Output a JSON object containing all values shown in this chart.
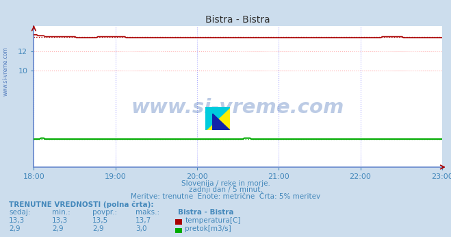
{
  "title": "Bistra - Bistra",
  "bg_color": "#ccdded",
  "plot_bg_color": "#ffffff",
  "grid_color": "#ffaaaa",
  "grid_color_v": "#aaaaff",
  "x_start": 0,
  "x_end": 300,
  "x_ticks": [
    0,
    60,
    120,
    180,
    240,
    300
  ],
  "x_tick_labels": [
    "18:00",
    "19:00",
    "20:00",
    "21:00",
    "22:00",
    "23:00"
  ],
  "y_min": 0,
  "y_max": 14.6,
  "y_ticks": [
    10,
    12
  ],
  "temp_color": "#aa0000",
  "pretok_color": "#00aa00",
  "temp_avg": 13.5,
  "pretok_avg": 2.9,
  "temp_value": 13.3,
  "temp_min": 13.3,
  "temp_max": 13.7,
  "pretok_value": 2.9,
  "pretok_min": 2.9,
  "pretok_max": 3.0,
  "watermark_text": "www.si-vreme.com",
  "watermark_color": "#2255aa",
  "subtitle1": "Slovenija / reke in morje.",
  "subtitle2": "zadnji dan / 5 minut.",
  "subtitle3": "Meritve: trenutne  Enote: metrične  Črta: 5% meritev",
  "footer_bold": "TRENUTNE VREDNOSTI (polna črta):",
  "col_sedaj": "sedaj:",
  "col_min": "min.:",
  "col_povpr": "povpr.:",
  "col_maks": "maks.:",
  "col_station": "Bistra - Bistra",
  "label_temp": "temperatura[C]",
  "label_pretok": "pretok[m3/s]",
  "axis_color": "#4466bb",
  "tick_color": "#4488bb",
  "spine_color": "#6688cc"
}
